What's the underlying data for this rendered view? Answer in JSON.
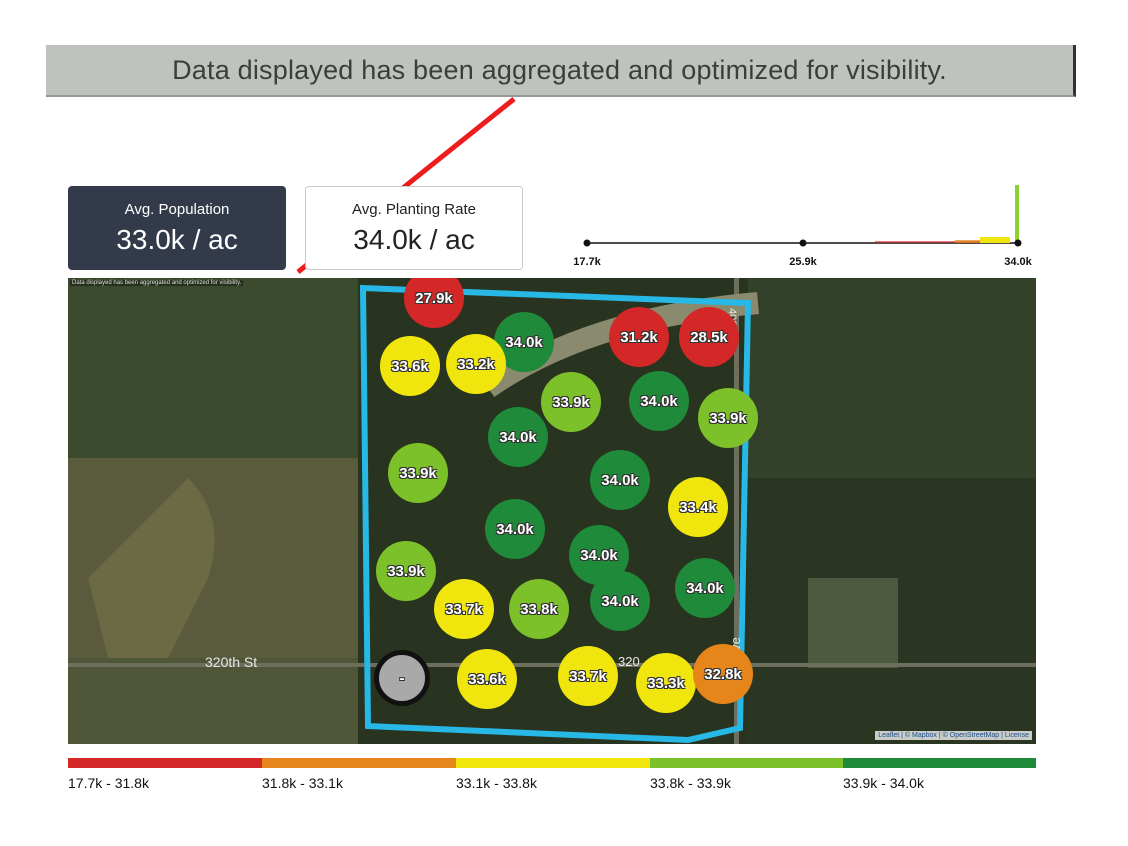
{
  "banner": {
    "text": "Data displayed has been aggregated and optimized for visibility."
  },
  "cards": {
    "population": {
      "label": "Avg. Population",
      "value": "33.0k / ac"
    },
    "planting": {
      "label": "Avg. Planting Rate",
      "value": "34.0k / ac"
    }
  },
  "histogram": {
    "ticks": [
      "17.7k",
      "25.9k",
      "34.0k"
    ],
    "accent": "#8bd12b"
  },
  "map": {
    "note": "Data displayed has been aggregated and optimized for visibility.",
    "attribution": "Leaflet | © Mapbox | © OpenStreetMap | License",
    "streets": {
      "s1": "320th St",
      "s2": "320",
      "s3": "th Ave",
      "s4": "400"
    },
    "boundary_color": "#27b8e6",
    "points": [
      {
        "value": "27.9k",
        "color": "#d42727"
      },
      {
        "value": "34.0k",
        "color": "#1e8a3a"
      },
      {
        "value": "31.2k",
        "color": "#d42727"
      },
      {
        "value": "28.5k",
        "color": "#d42727"
      },
      {
        "value": "33.6k",
        "color": "#f0e60e"
      },
      {
        "value": "33.2k",
        "color": "#f0e60e"
      },
      {
        "value": "33.9k",
        "color": "#7cc12a"
      },
      {
        "value": "34.0k",
        "color": "#1e8a3a"
      },
      {
        "value": "33.9k",
        "color": "#7cc12a"
      },
      {
        "value": "34.0k",
        "color": "#1e8a3a"
      },
      {
        "value": "33.9k",
        "color": "#7cc12a"
      },
      {
        "value": "34.0k",
        "color": "#1e8a3a"
      },
      {
        "value": "33.4k",
        "color": "#f0e60e"
      },
      {
        "value": "34.0k",
        "color": "#1e8a3a"
      },
      {
        "value": "34.0k",
        "color": "#1e8a3a"
      },
      {
        "value": "33.9k",
        "color": "#7cc12a"
      },
      {
        "value": "33.7k",
        "color": "#f0e60e"
      },
      {
        "value": "33.8k",
        "color": "#7cc12a"
      },
      {
        "value": "34.0k",
        "color": "#1e8a3a"
      },
      {
        "value": "34.0k",
        "color": "#1e8a3a"
      },
      {
        "value": "-",
        "color": "#a9a9a9"
      },
      {
        "value": "33.6k",
        "color": "#f0e60e"
      },
      {
        "value": "33.7k",
        "color": "#f0e60e"
      },
      {
        "value": "33.3k",
        "color": "#f0e60e"
      },
      {
        "value": "32.8k",
        "color": "#e6861a"
      }
    ]
  },
  "legend": [
    {
      "label": "17.7k - 31.8k",
      "color": "#d42727"
    },
    {
      "label": "31.8k - 33.1k",
      "color": "#e6861a"
    },
    {
      "label": "33.1k - 33.8k",
      "color": "#f0e60e"
    },
    {
      "label": "33.8k - 33.9k",
      "color": "#7cc12a"
    },
    {
      "label": "33.9k - 34.0k",
      "color": "#1e8a3a"
    }
  ]
}
